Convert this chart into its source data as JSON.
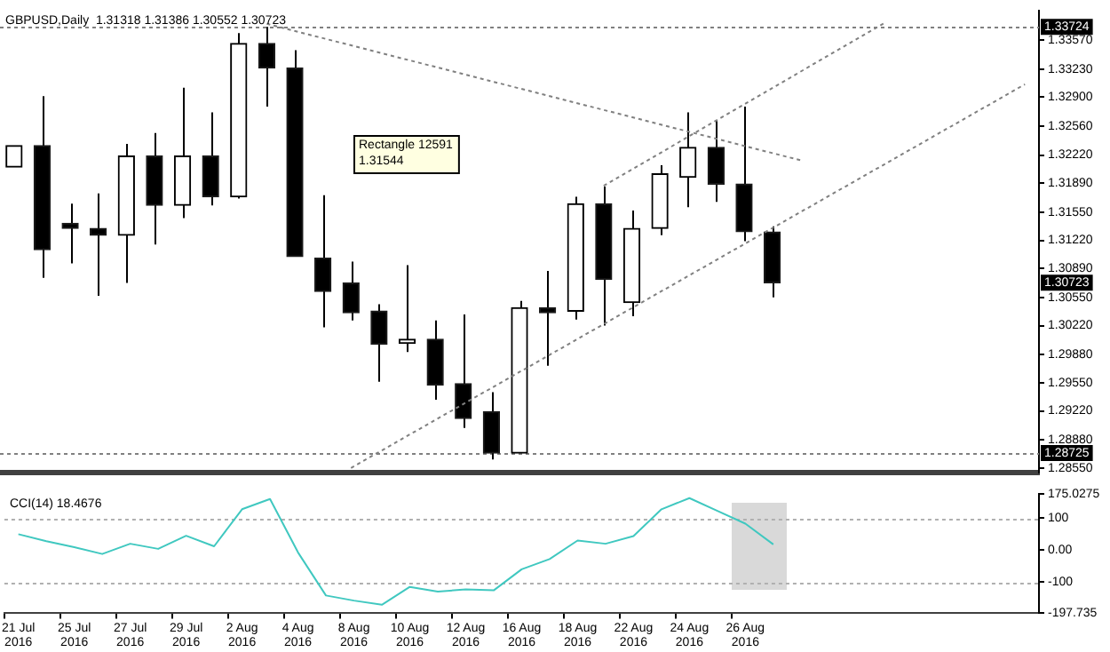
{
  "chart_data": [
    {
      "type": "candlestick",
      "title": "GBPUSD,Daily  1.31318 1.31386 1.30552 1.30723",
      "ylim": [
        1.285,
        1.3391
      ],
      "tick_labels": "y",
      "categories": [
        null,
        null,
        null,
        null,
        null,
        null,
        null,
        null,
        null,
        null,
        null,
        null,
        null,
        null,
        null,
        null,
        null,
        null,
        null,
        null,
        null,
        null,
        null,
        null,
        null,
        null,
        null,
        null,
        null,
        null,
        null,
        null,
        null,
        null,
        null,
        null,
        null
      ],
      "yticks": [
        {
          "value": 1.2855,
          "label": "1.28550"
        },
        {
          "value": 1.2888,
          "label": "1.28880"
        },
        {
          "value": 1.2922,
          "label": "1.29220"
        },
        {
          "value": 1.2955,
          "label": "1.29550"
        },
        {
          "value": 1.2988,
          "label": "1.29880"
        },
        {
          "value": 1.3022,
          "label": "1.30220"
        },
        {
          "value": 1.3055,
          "label": "1.30550"
        },
        {
          "value": 1.3089,
          "label": "1.30890"
        },
        {
          "value": 1.3122,
          "label": "1.31220"
        },
        {
          "value": 1.3155,
          "label": "1.31550"
        },
        {
          "value": 1.3189,
          "label": "1.31890"
        },
        {
          "value": 1.3222,
          "label": "1.32220"
        },
        {
          "value": 1.3256,
          "label": "1.32560"
        },
        {
          "value": 1.329,
          "label": "1.32900"
        },
        {
          "value": 1.3323,
          "label": "1.33230"
        },
        {
          "value": 1.3357,
          "label": "1.33570"
        }
      ],
      "ohlc": [
        [
          1.3208,
          1.3233,
          1.3208,
          1.3233
        ],
        [
          1.3233,
          1.3291,
          1.3078,
          1.3111
        ],
        [
          1.3142,
          1.3165,
          1.3095,
          1.3136
        ],
        [
          1.3136,
          1.3177,
          1.3057,
          1.3128
        ],
        [
          1.3128,
          1.3235,
          1.3072,
          1.3221
        ],
        [
          1.3221,
          1.3248,
          1.3117,
          1.3163
        ],
        [
          1.3163,
          1.3301,
          1.3148,
          1.3221
        ],
        [
          1.3221,
          1.3272,
          1.3163,
          1.3173
        ],
        [
          1.3173,
          1.3365,
          1.3171,
          1.3353
        ],
        [
          1.3353,
          1.33724,
          1.3279,
          1.3324
        ],
        [
          1.3324,
          1.3345,
          1.3103,
          1.3103
        ],
        [
          1.3101,
          1.3175,
          1.302,
          1.3062
        ],
        [
          1.3072,
          1.3097,
          1.3028,
          1.3037
        ],
        [
          1.3039,
          1.3047,
          1.2956,
          1.3
        ],
        [
          1.3001,
          1.3093,
          1.2991,
          1.3006
        ],
        [
          1.3006,
          1.3028,
          1.2935,
          1.2952
        ],
        [
          1.2954,
          1.3035,
          1.2902,
          1.2913
        ],
        [
          1.2921,
          1.2944,
          1.2865,
          1.28725
        ],
        [
          1.28725,
          1.3051,
          1.28725,
          1.3043
        ],
        [
          1.3043,
          1.3086,
          1.2975,
          1.3037
        ],
        [
          1.3039,
          1.3173,
          1.3029,
          1.3165
        ],
        [
          1.3165,
          1.3185,
          1.3022,
          1.3076
        ],
        [
          1.3049,
          1.3157,
          1.3033,
          1.3136
        ],
        [
          1.3136,
          1.321,
          1.3128,
          1.32
        ],
        [
          1.3196,
          1.3272,
          1.3161,
          1.3231
        ],
        [
          1.3231,
          1.3262,
          1.3167,
          1.3188
        ],
        [
          1.3188,
          1.3279,
          1.3121,
          1.3132
        ],
        [
          1.31318,
          1.31386,
          1.30552,
          1.30723
        ],
        null,
        null,
        null,
        null,
        null,
        null,
        null,
        null,
        null
      ],
      "series": [
        {
          "type": "line",
          "values": [
            null,
            null,
            null,
            null,
            null,
            null,
            null,
            null,
            null,
            1.3376,
            null,
            null,
            null,
            null,
            null,
            null,
            null,
            null,
            null,
            null,
            null,
            null,
            null,
            null,
            null,
            null,
            null,
            null,
            1.3216,
            null,
            null,
            null,
            null,
            null,
            null,
            null,
            null
          ],
          "color": "#808080",
          "line_style": "dotted"
        },
        {
          "type": "line",
          "values": [
            null,
            null,
            null,
            null,
            null,
            null,
            null,
            null,
            null,
            null,
            null,
            null,
            null,
            null,
            null,
            null,
            null,
            null,
            null,
            null,
            null,
            1.3186,
            null,
            null,
            null,
            null,
            null,
            null,
            null,
            null,
            null,
            1.3377,
            null,
            null,
            null,
            null,
            null
          ],
          "color": "#808080",
          "line_style": "dotted"
        },
        {
          "type": "line",
          "values": [
            null,
            null,
            null,
            null,
            null,
            null,
            null,
            null,
            null,
            null,
            null,
            null,
            1.2855,
            null,
            null,
            null,
            null,
            null,
            null,
            null,
            null,
            null,
            null,
            null,
            null,
            null,
            null,
            null,
            null,
            null,
            null,
            null,
            null,
            null,
            null,
            null,
            1.3305
          ],
          "color": "#808080",
          "line_style": "dotted"
        }
      ],
      "ref_lines": [
        {
          "axis": "y",
          "value": 1.33724,
          "label": "1.33724",
          "color": "#808080",
          "line_style": "dotted"
        },
        {
          "axis": "y",
          "value": 1.28725,
          "label": "1.28725",
          "color": "#808080",
          "line_style": "dotted"
        }
      ],
      "annotations": [
        "Rectangle 12591",
        "1.31544",
        {
          "text": "1.30723",
          "y": 1.30723
        }
      ]
    },
    {
      "type": "line",
      "title": "CCI(14) 18.4676",
      "ylim": [
        -197.735,
        175.0275
      ],
      "categories": [
        "21 Jul 2016",
        null,
        "25 Jul 2016",
        null,
        "27 Jul 2016",
        null,
        "29 Jul 2016",
        null,
        "2 Aug 2016",
        null,
        "4 Aug 2016",
        null,
        "8 Aug 2016",
        null,
        "10 Aug 2016",
        null,
        "12 Aug 2016",
        null,
        "16 Aug 2016",
        null,
        "18 Aug 2016",
        null,
        "22 Aug 2016",
        null,
        "24 Aug 2016",
        null,
        "26 Aug 2016",
        null,
        null,
        null,
        null,
        null,
        null,
        null,
        null,
        null,
        null
      ],
      "yticks": [
        {
          "value": 175.0275,
          "label": "175.0275"
        },
        100,
        {
          "value": 0,
          "label": "0.00"
        },
        -100,
        {
          "value": -197.735,
          "label": "-197.735"
        }
      ],
      "series": [
        {
          "values": [
            50,
            28,
            9,
            -12,
            20,
            4,
            45,
            12,
            128,
            160,
            -7,
            -142,
            -158,
            -171,
            -115,
            -130,
            -123,
            -126,
            -60,
            -28,
            30,
            20,
            44,
            128,
            163,
            123,
            83,
            18,
            null,
            null,
            null,
            null,
            null,
            null,
            null,
            null,
            null
          ],
          "color": "#40c8c0"
        }
      ],
      "ref_lines": [
        {
          "axis": "y",
          "value": 100,
          "color": "#b0b0b0",
          "line_style": "dotted"
        },
        {
          "axis": "y",
          "value": -100,
          "color": "#b0b0b0",
          "line_style": "dotted"
        }
      ]
    }
  ]
}
